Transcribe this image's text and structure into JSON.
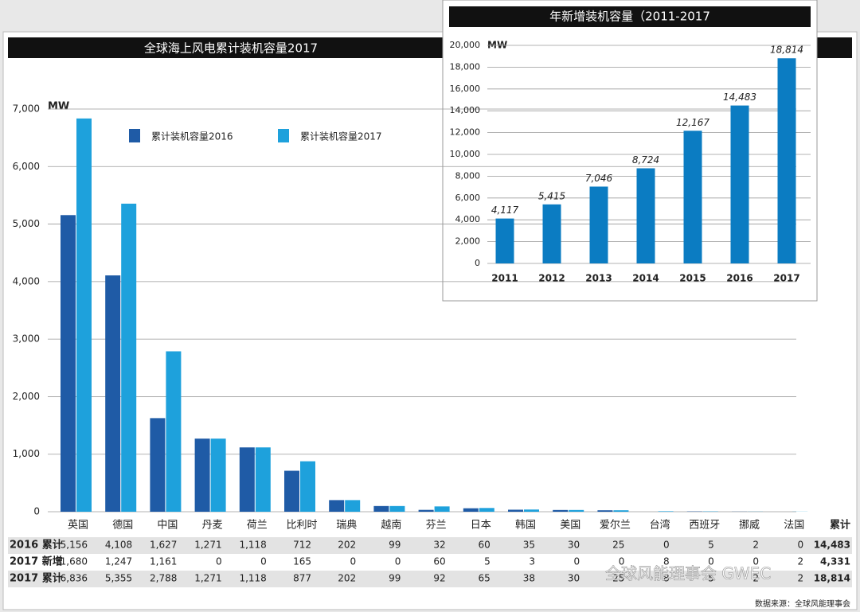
{
  "chart_data": [
    {
      "type": "bar",
      "title": "全球海上风电累计装机容量2017",
      "y_unit": "MW",
      "categories": [
        "英国",
        "德国",
        "中国",
        "丹麦",
        "荷兰",
        "比利时",
        "瑞典",
        "越南",
        "芬兰",
        "日本",
        "韩国",
        "美国",
        "爱尔兰",
        "台湾",
        "西班牙",
        "挪威",
        "法国"
      ],
      "series": [
        {
          "name": "累计装机容量2016",
          "color": "#1f5ba6",
          "values": [
            5156,
            4108,
            1627,
            1271,
            1118,
            712,
            202,
            99,
            32,
            60,
            35,
            30,
            25,
            0,
            5,
            2,
            0
          ],
          "value_labels": [
            "5,156",
            "4,108",
            "1,627",
            "1,271",
            "1,118",
            "712",
            "202",
            "99",
            "32",
            "60",
            "35",
            "30",
            "25",
            "0",
            "5",
            "2",
            "0"
          ]
        },
        {
          "name": "累计装机容量2017",
          "color": "#1ea1dc",
          "values": [
            6836,
            5355,
            2788,
            1271,
            1118,
            877,
            202,
            99,
            92,
            65,
            38,
            30,
            25,
            8,
            5,
            2,
            2
          ],
          "value_labels": [
            "6,836",
            "5,355",
            "2,788",
            "1,271",
            "1,118",
            "877",
            "202",
            "99",
            "92",
            "65",
            "38",
            "30",
            "25",
            "8",
            "5",
            "2",
            "2"
          ]
        }
      ],
      "ylim": [
        0,
        7000
      ],
      "yticks": [
        0,
        {
          "value": 1000,
          "label": "1,000"
        },
        {
          "value": 2000,
          "label": "2,000"
        },
        {
          "value": 3000,
          "label": "3,000"
        },
        {
          "value": 4000,
          "label": "4,000"
        },
        {
          "value": 5000,
          "label": "5,000"
        },
        {
          "value": 6000,
          "label": "6,000"
        },
        {
          "value": 7000,
          "label": "7,000"
        }
      ],
      "grid": true,
      "table": {
        "row_labels": [
          "2016 累计",
          "2017 新增",
          "2017 累计"
        ],
        "total_header": "累计",
        "additions": [
          "1,680",
          "1,247",
          "1,161",
          "0",
          "0",
          "165",
          "0",
          "0",
          "60",
          "5",
          "3",
          "0",
          "0",
          "8",
          "0",
          "0",
          "2"
        ],
        "totals": [
          "14,483",
          "4,331",
          "18,814"
        ]
      },
      "watermark": "全球风能理事会 GWEC",
      "source": "数据来源：全球风能理事会"
    },
    {
      "type": "bar",
      "title": "年新增装机容量（2011-2017",
      "y_unit": "MW",
      "categories": [
        "2011",
        "2012",
        "2013",
        "2014",
        "2015",
        "2016",
        "2017"
      ],
      "values": [
        4117,
        5415,
        7046,
        8724,
        12167,
        14483,
        18814
      ],
      "value_labels": [
        "4,117",
        "5,415",
        "7,046",
        "8,724",
        "12,167",
        "14,483",
        "18,814"
      ],
      "color": "#0b7cc2",
      "ylim": [
        0,
        20000
      ],
      "yticks": [
        0,
        {
          "value": 2000,
          "label": "2,000"
        },
        {
          "value": 4000,
          "label": "4,000"
        },
        {
          "value": 6000,
          "label": "6,000"
        },
        {
          "value": 8000,
          "label": "8,000"
        },
        {
          "value": 10000,
          "label": "10,000"
        },
        {
          "value": 12000,
          "label": "12,000"
        },
        {
          "value": 14000,
          "label": "14,000"
        },
        {
          "value": 16000,
          "label": "16,000"
        },
        {
          "value": 18000,
          "label": "18,000"
        },
        {
          "value": 20000,
          "label": "20,000"
        }
      ],
      "grid": true
    }
  ]
}
